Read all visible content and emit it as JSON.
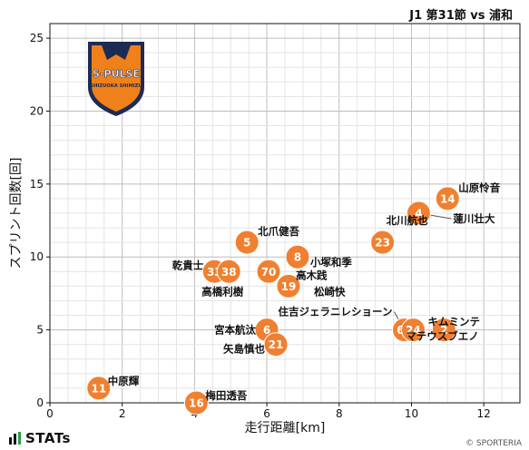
{
  "header": {
    "match_title": "J1 第31節 vs 浦和"
  },
  "branding": {
    "stats_label": "STATs",
    "credit": "© SPORTERIA",
    "team_logo": {
      "text_top": "S-PULSE",
      "text_bottom": "SHIZUOKA SHIMIZU",
      "color_orange": "#F08019",
      "color_navy": "#1D2B54"
    }
  },
  "chart_data": {
    "type": "scatter",
    "title": "",
    "xlabel": "走行距離[km]",
    "ylabel": "スプリント回数[回]",
    "xlim": [
      0,
      13
    ],
    "ylim": [
      0,
      26
    ],
    "x_ticks": [
      0,
      2,
      4,
      6,
      8,
      10,
      12
    ],
    "y_ticks": [
      0,
      5,
      10,
      15,
      20,
      25
    ],
    "grid": true,
    "marker_color": "#F08030",
    "points": [
      {
        "number": "14",
        "name": "山原怜音",
        "x": 11.0,
        "y": 14
      },
      {
        "number": "4",
        "name": "蓮川壮大",
        "x": 10.2,
        "y": 13
      },
      {
        "number": "23",
        "name": "北川航也",
        "x": 9.2,
        "y": 11
      },
      {
        "number": "5",
        "name": "北爪健吾",
        "x": 5.45,
        "y": 11
      },
      {
        "number": "8",
        "name": "小塚和季",
        "x": 6.85,
        "y": 10
      },
      {
        "number": "33",
        "name": "乾貴士",
        "x": 4.55,
        "y": 9
      },
      {
        "number": "38",
        "name": "高橋利樹",
        "x": 4.95,
        "y": 9
      },
      {
        "number": "70",
        "name": "高木践",
        "x": 6.05,
        "y": 9
      },
      {
        "number": "19",
        "name": "松崎快",
        "x": 6.6,
        "y": 8
      },
      {
        "number": "66",
        "name": "住吉ジェラニレショーン",
        "x": 9.8,
        "y": 5
      },
      {
        "number": "24",
        "name": "キムミンテ",
        "x": 10.05,
        "y": 5
      },
      {
        "number": "2",
        "name": "マテウスブエノ",
        "x": 10.9,
        "y": 5
      },
      {
        "number": "6",
        "name": "宮本航汰",
        "x": 6.0,
        "y": 5
      },
      {
        "number": "21",
        "name": "矢島慎也",
        "x": 6.25,
        "y": 4
      },
      {
        "number": "11",
        "name": "中原輝",
        "x": 1.35,
        "y": 1
      },
      {
        "number": "16",
        "name": "梅田透吾",
        "x": 4.05,
        "y": 0
      }
    ]
  }
}
